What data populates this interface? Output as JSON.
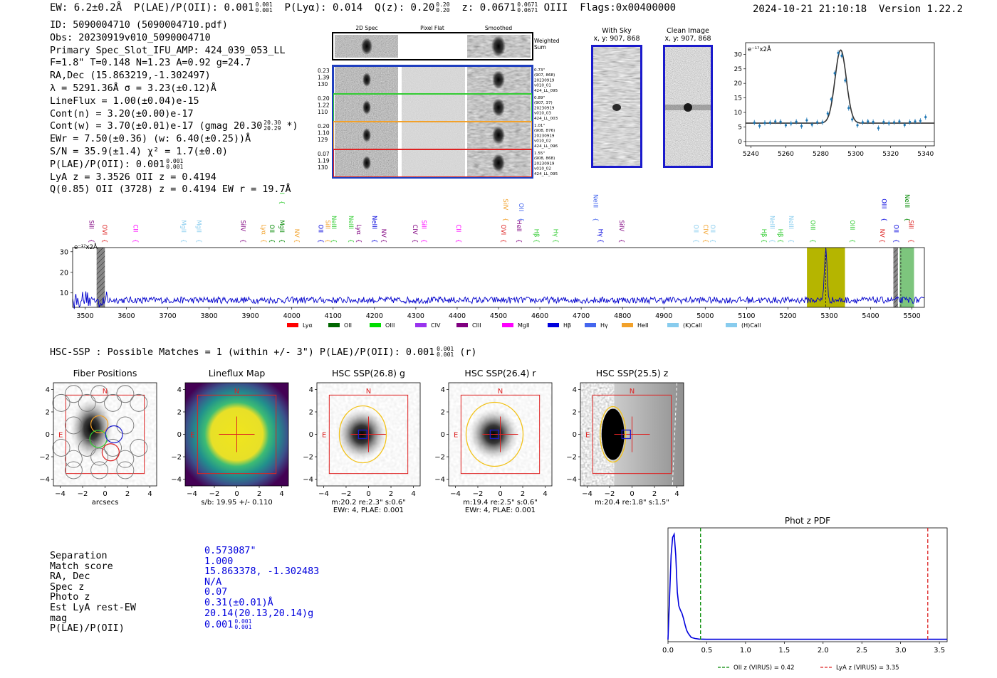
{
  "header": {
    "ew": "EW: 6.2±0.2Å",
    "plae_label": "P(LAE)/P(OII): 0.001",
    "plae_sup": "0.001",
    "plae_sub": "0.001",
    "plya": "P(Lyα): 0.014",
    "qz_label": "Q(z): 0.20",
    "qz_sup": "0.20",
    "qz_sub": "0.20",
    "z_label": "z: 0.0671",
    "z_sup": "0.0671",
    "z_sub": "0.0671",
    "z_line": "OIII",
    "flags": "Flags:0x00400000",
    "timestamp": "2024-10-21 21:10:18",
    "version": "Version 1.22.2"
  },
  "info": {
    "id": "ID: 5090004710 (5090004710.pdf)",
    "obs": "Obs: 20230919v010_5090004710",
    "primary": "Primary Spec_Slot_IFU_AMP: 424_039_053_LL",
    "params": "F=1.8\"  T=0.148  N=1.23  A=0.92  g=24.7",
    "radec": "RA,Dec (15.863219,-1.302497)",
    "lambda": "λ = 5291.36Å  σ = 3.23(±0.12)Å",
    "lineflux": "LineFlux = 1.00(±0.04)e-15",
    "contn": "Cont(n) = 3.20(±0.00)e-17",
    "contw": "Cont(w) = 3.70(±0.01)e-17 (gmag 20.30",
    "contw_sup": "20.30",
    "contw_sub": "20.29",
    "contw_tail": " *)",
    "ewr": "EWr = 7.50(±0.36) (w: 6.40(±0.25))Å",
    "sn": "S/N = 35.9(±1.4)  χ² = 1.7(±0.0)",
    "plae": "P(LAE)/P(OII): 0.001",
    "plae_sup": "0.001",
    "plae_sub": "0.001",
    "lya": "LyA z = 3.3526  OII z = 0.4194",
    "q": "Q(0.85) OII (3728) z = 0.4194  EW r = 19.7Å"
  },
  "cutouts": {
    "col_titles": [
      "2D Spec",
      "Pixel Flat",
      "Smoothed"
    ],
    "weighted_sum": [
      "Weighted",
      "Sum"
    ],
    "rows": [
      {
        "left": [
          "0.23",
          "1.39",
          "130"
        ],
        "right": [
          "0.73\"",
          "(907, 868)",
          "20230919",
          "v010_01",
          "424_LL_095"
        ],
        "color": "#1f3fbf"
      },
      {
        "left": [
          "0.20",
          "1.22",
          "110"
        ],
        "right": [
          "0.89\"",
          "(907, 37)",
          "20230919",
          "v010_03",
          "424_LL_003"
        ],
        "color": "#33cc33"
      },
      {
        "left": [
          "0.20",
          "1.10",
          "129"
        ],
        "right": [
          "1.01\"",
          "(908, 876)",
          "20230919",
          "v010_02",
          "424_LL_096"
        ],
        "color": "#f2a12a"
      },
      {
        "left": [
          "0.07",
          "1.19",
          "130"
        ],
        "right": [
          "1.55\"",
          "(908, 868)",
          "20230919",
          "v010_02",
          "424_LL_095"
        ],
        "color": "#dd2222"
      }
    ]
  },
  "sky": {
    "with_sky_title": "With Sky",
    "with_sky_coords": "x, y: 907, 868",
    "clean_title": "Clean Image",
    "clean_coords": "x, y: 907, 868"
  },
  "zoom_chart": {
    "type": "scatter",
    "unit_label": "e⁻¹⁷x2Å",
    "x": [
      5242,
      5245,
      5248,
      5251,
      5254,
      5257,
      5260,
      5263,
      5266,
      5269,
      5272,
      5275,
      5278,
      5281,
      5284,
      5286,
      5288,
      5290,
      5292,
      5294,
      5296,
      5298,
      5301,
      5304,
      5307,
      5310,
      5313,
      5316,
      5319,
      5322,
      5325,
      5328,
      5331,
      5334,
      5337,
      5340
    ],
    "y": [
      6.5,
      5.4,
      6.4,
      6.5,
      6.9,
      6.8,
      5.6,
      6.2,
      6.8,
      5.3,
      7.3,
      5.8,
      6.6,
      6.6,
      9.6,
      14.5,
      23.5,
      30.5,
      29.5,
      21.0,
      11.5,
      7.6,
      5.6,
      6.6,
      6.9,
      6.7,
      4.6,
      6.7,
      6.3,
      6.6,
      6.9,
      5.7,
      6.7,
      6.9,
      7.1,
      8.4
    ],
    "fit_baseline": 6.3,
    "fit_peak": 31.5,
    "fit_center": 5291.4,
    "fit_sigma": 3.23,
    "xlim": [
      5237,
      5345
    ],
    "ylim": [
      -1.5,
      34
    ],
    "xticks": [
      5240,
      5260,
      5280,
      5300,
      5320,
      5340
    ],
    "yticks": [
      0,
      5,
      10,
      15,
      20,
      25,
      30
    ]
  },
  "spectrum": {
    "type": "line",
    "unit_label": "e⁻¹⁷x2Å",
    "xlim": [
      3470,
      5530
    ],
    "ylim": [
      3,
      32
    ],
    "xticks": [
      3500,
      3600,
      3700,
      3800,
      3900,
      4000,
      4100,
      4200,
      4300,
      4400,
      4500,
      4600,
      4700,
      4800,
      4900,
      5000,
      5100,
      5200,
      5300,
      5400,
      5500
    ],
    "yticks": [
      10,
      20,
      30
    ],
    "baseline": 6.5,
    "peak_center": 5291.4,
    "peak_height": 31.5,
    "highlight_main": [
      5246,
      5338
    ],
    "hatched": [
      [
        3528,
        3548
      ],
      [
        5455,
        5466
      ]
    ],
    "green_band": [
      5470,
      5505
    ],
    "dashed_lines": [
      5291.4,
      5473
    ],
    "line_labels": [
      {
        "name": "SiII",
        "w": 3505,
        "tier": 0,
        "color": "#800080"
      },
      {
        "name": "OVI",
        "w": 3537,
        "tier": 0,
        "color": "#dd2222"
      },
      {
        "name": "CII",
        "w": 3612,
        "tier": 0,
        "color": "#ff00ff"
      },
      {
        "name": "MgII",
        "w": 3728,
        "tier": 0,
        "color": "#88ccee"
      },
      {
        "name": "MgII",
        "w": 3765,
        "tier": 0,
        "color": "#88ccee"
      },
      {
        "name": "SiIV",
        "w": 3872,
        "tier": 0,
        "color": "#800080"
      },
      {
        "name": "Lyα",
        "w": 3922,
        "tier": 0,
        "color": "#f2a12a"
      },
      {
        "name": "OII",
        "w": 3942,
        "tier": 0,
        "color": "#008800"
      },
      {
        "name": "MgII",
        "w": 3966,
        "tier": 0,
        "color": "#008800"
      },
      {
        "name": "MgII",
        "w": 3966,
        "tier": 2,
        "color": "#33cc33"
      },
      {
        "name": "NV",
        "w": 4002,
        "tier": 0,
        "color": "#f2a12a"
      },
      {
        "name": "OII",
        "w": 4060,
        "tier": 0,
        "color": "#0000dd"
      },
      {
        "name": "SiII",
        "w": 4077,
        "tier": 0,
        "color": "#f2a12a"
      },
      {
        "name": "NeIII",
        "w": 4092,
        "tier": 0,
        "color": "#33cc33"
      },
      {
        "name": "NeIII",
        "w": 4133,
        "tier": 0,
        "color": "#33cc33"
      },
      {
        "name": "Lyα",
        "w": 4152,
        "tier": 0,
        "color": "#800080"
      },
      {
        "name": "NeIII",
        "w": 4190,
        "tier": 0,
        "color": "#0000dd"
      },
      {
        "name": "NV",
        "w": 4212,
        "tier": 0,
        "color": "#800080"
      },
      {
        "name": "CIV",
        "w": 4288,
        "tier": 0,
        "color": "#800080"
      },
      {
        "name": "SiII",
        "w": 4310,
        "tier": 0,
        "color": "#ff00ff"
      },
      {
        "name": "CII",
        "w": 4393,
        "tier": 0,
        "color": "#ff00ff"
      },
      {
        "name": "OVI",
        "w": 4502,
        "tier": 0,
        "color": "#dd2222"
      },
      {
        "name": "SiIV",
        "w": 4507,
        "tier": 1,
        "color": "#f2a12a"
      },
      {
        "name": "HeII",
        "w": 4540,
        "tier": 0,
        "color": "#800080"
      },
      {
        "name": "OII",
        "w": 4545,
        "tier": 1,
        "color": "#4466ee"
      },
      {
        "name": "Hβ",
        "w": 4582,
        "tier": 0,
        "color": "#33cc33"
      },
      {
        "name": "Hγ",
        "w": 4628,
        "tier": 0,
        "color": "#33cc33"
      },
      {
        "name": "NeIII",
        "w": 4725,
        "tier": 1,
        "color": "#4466ee"
      },
      {
        "name": "Hγ",
        "w": 4737,
        "tier": 0,
        "color": "#0000dd"
      },
      {
        "name": "SiIV",
        "w": 4788,
        "tier": 0,
        "color": "#800080"
      },
      {
        "name": "OII",
        "w": 4968,
        "tier": 0,
        "color": "#88ccee"
      },
      {
        "name": "CIV",
        "w": 4991,
        "tier": 0,
        "color": "#f2a12a"
      },
      {
        "name": "OII",
        "w": 5008,
        "tier": 0,
        "color": "#88ccee"
      },
      {
        "name": "Hβ",
        "w": 5132,
        "tier": 0,
        "color": "#33cc33"
      },
      {
        "name": "NeIII",
        "w": 5152,
        "tier": 0,
        "color": "#88ccee"
      },
      {
        "name": "Hβ",
        "w": 5172,
        "tier": 0,
        "color": "#33cc33"
      },
      {
        "name": "NeIII",
        "w": 5198,
        "tier": 0,
        "color": "#88ccee"
      },
      {
        "name": "OIII",
        "w": 5250,
        "tier": 0,
        "color": "#33cc33"
      },
      {
        "name": "OIII",
        "w": 5346,
        "tier": 0,
        "color": "#33cc33"
      },
      {
        "name": "NV",
        "w": 5418,
        "tier": 0,
        "color": "#dd2222"
      },
      {
        "name": "OIII",
        "w": 5422,
        "tier": 1,
        "color": "#0000dd"
      },
      {
        "name": "OII",
        "w": 5452,
        "tier": 0,
        "color": "#0000dd"
      },
      {
        "name": "NeIII",
        "w": 5478,
        "tier": 1,
        "color": "#008800"
      },
      {
        "name": "SiII",
        "w": 5488,
        "tier": 0,
        "color": "#dd2222"
      }
    ],
    "legend": [
      {
        "label": "Lyα",
        "color": "#ff0000"
      },
      {
        "label": "OII",
        "color": "#006600"
      },
      {
        "label": "OIII",
        "color": "#00dd00"
      },
      {
        "label": "CIV",
        "color": "#9933ee"
      },
      {
        "label": "CIII",
        "color": "#800080"
      },
      {
        "label": "MgII",
        "color": "#ff00ff"
      },
      {
        "label": "Hβ",
        "color": "#0000dd"
      },
      {
        "label": "Hγ",
        "color": "#4466ee"
      },
      {
        "label": "HeII",
        "color": "#f2a12a"
      },
      {
        "label": "(K)CaII",
        "color": "#88ccee"
      },
      {
        "label": "(H)CaII",
        "color": "#88ccee"
      }
    ]
  },
  "hsc": {
    "header": "HSC-SSP : Possible Matches = 1 (within +/- 3\")  P(LAE)/P(OII): 0.001",
    "header_sup": "0.001",
    "header_sub": "0.001",
    "header_tail": " (r)",
    "panels": [
      {
        "title": "Fiber Positions",
        "kind": "fiber",
        "cap1": "arcsecs",
        "cap2": ""
      },
      {
        "title": "Lineflux Map",
        "kind": "lineflux",
        "cap1": "s/b: 19.95 +/- 0.110",
        "cap2": ""
      },
      {
        "title": "HSC SSP(26.8) g",
        "kind": "g",
        "cap1": "m:20.2  re:2.3\"  s:0.6\"",
        "cap2": "EWr: 4, PLAE: 0.001"
      },
      {
        "title": "HSC SSP(26.4) r",
        "kind": "r",
        "cap1": "m:19.4  re:2.5\"  s:0.6\"",
        "cap2": "EWr: 4, PLAE: 0.001"
      },
      {
        "title": "HSC SSP(25.5) z",
        "kind": "z",
        "cap1": "m:20.4  re:1.8\"  s:1.5\"",
        "cap2": ""
      }
    ],
    "ticks": [
      -4,
      -2,
      0,
      2,
      4
    ],
    "n_label": "N",
    "e_label": "E"
  },
  "match_table": {
    "labels": [
      "Separation",
      "Match score",
      "RA, Dec",
      "Spec z",
      "Photo z",
      "Est LyA rest-EW",
      "mag",
      "P(LAE)/P(OII)"
    ],
    "values": [
      "0.573087\"",
      "1.000",
      "15.863378, -1.302483",
      "N/A",
      "0.07",
      "0.31(±0.01)Å",
      "20.14(20.13,20.14)g",
      "0.001"
    ],
    "plae_sup": "0.001",
    "plae_sub": "0.001"
  },
  "photz": {
    "type": "line",
    "title": "Phot z PDF",
    "xlim": [
      0,
      3.6
    ],
    "xticks": [
      0.0,
      0.5,
      1.0,
      1.5,
      2.0,
      2.5,
      3.0,
      3.5
    ],
    "x": [
      0.0,
      0.02,
      0.04,
      0.06,
      0.08,
      0.1,
      0.12,
      0.14,
      0.16,
      0.18,
      0.2,
      0.22,
      0.24,
      0.26,
      0.28,
      0.3,
      0.35,
      0.4,
      0.5,
      1.0,
      2.0,
      3.0,
      3.6
    ],
    "y": [
      0.0,
      0.4,
      0.8,
      0.97,
      1.0,
      0.8,
      0.45,
      0.32,
      0.28,
      0.25,
      0.2,
      0.14,
      0.09,
      0.06,
      0.04,
      0.02,
      0.01,
      0.005,
      0.003,
      0.003,
      0.003,
      0.003,
      0.003
    ],
    "oii_z": 0.42,
    "lya_z": 3.35,
    "legend_oii": "OII z (VIRUS) = 0.42",
    "legend_lya": "LyA z (VIRUS) = 3.35",
    "oii_color": "#008800",
    "lya_color": "#dd2222"
  }
}
